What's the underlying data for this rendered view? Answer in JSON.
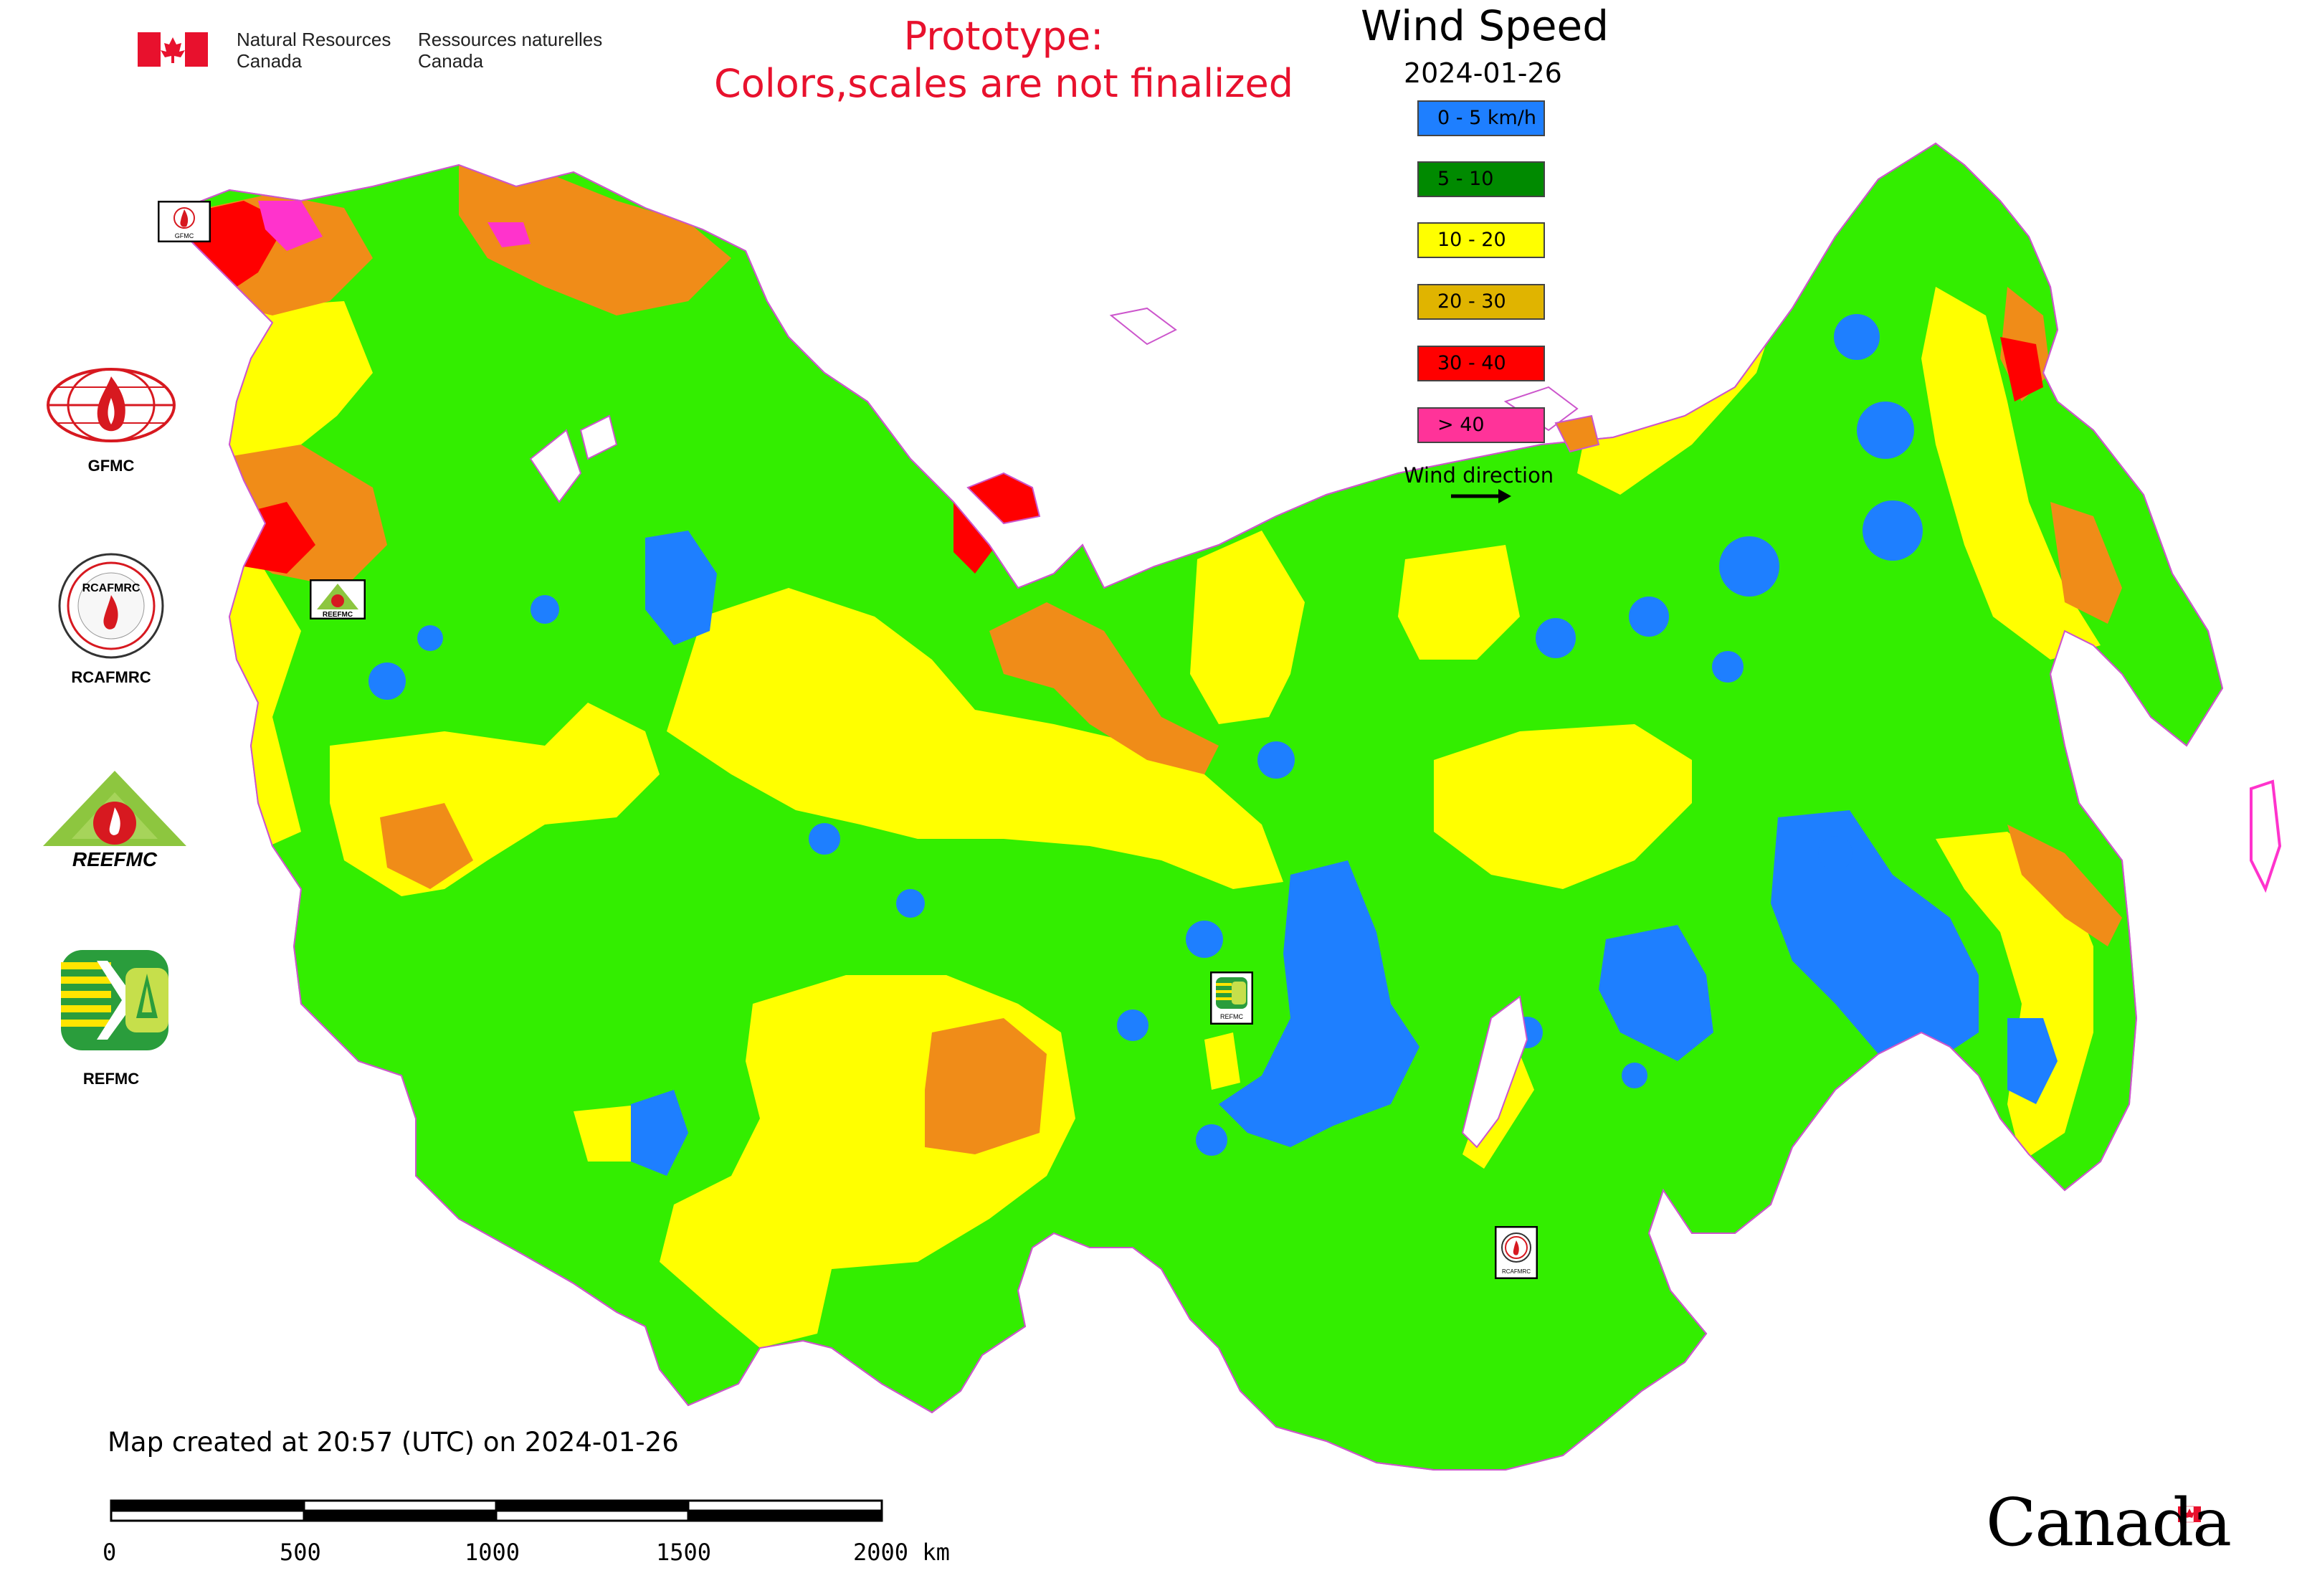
{
  "header": {
    "agency_en": "Natural Resources\nCanada",
    "agency_fr": "Ressources naturelles\nCanada",
    "prototype_line1": "Prototype:",
    "prototype_line2": "Colors,scales are not finalized",
    "canada_wordmark": "Canada"
  },
  "legend": {
    "title": "Wind Speed",
    "date": "2024-01-26",
    "classes": [
      {
        "label": "0 - 5 km/h",
        "color": "#1e7fff"
      },
      {
        "label": "5 - 10",
        "color": "#008a00"
      },
      {
        "label": "10 - 20",
        "color": "#ffff00"
      },
      {
        "label": "20 - 30",
        "color": "#e0b400"
      },
      {
        "label": "30 - 40",
        "color": "#ff0000"
      },
      {
        "label": "> 40",
        "color": "#ff3399"
      }
    ],
    "wind_direction_label": "Wind direction"
  },
  "map_colors": {
    "calm": "#1e7fff",
    "light": "#33ee00",
    "moderate": "#ffff00",
    "strong": "#f08c18",
    "very_strong": "#ff0000",
    "extreme": "#ff33cc"
  },
  "side_logos": [
    {
      "label": "GFMC",
      "icon": "gfmc-globe-flame-logo"
    },
    {
      "label": "RCAFMRC",
      "icon": "rcafmrc-seal-logo"
    },
    {
      "label": "",
      "icon": "reefmc-triangle-logo",
      "logo_text": "REEFMC"
    },
    {
      "label": "REFMC",
      "icon": "refmc-stripes-logo"
    }
  ],
  "map_markers": [
    {
      "label": "GFMC",
      "icon": "gfmc-marker-logo"
    },
    {
      "label": "REEFMC",
      "icon": "reefmc-marker-logo"
    },
    {
      "label": "REFMC",
      "icon": "refmc-marker-logo"
    },
    {
      "label": "RCAFMRC",
      "icon": "rcafmrc-marker-logo"
    }
  ],
  "footer": {
    "created": "Map created at 20:57 (UTC) on 2024-01-26",
    "scale_labels": [
      "0",
      "500",
      "1000",
      "1500",
      "2000 km"
    ]
  }
}
